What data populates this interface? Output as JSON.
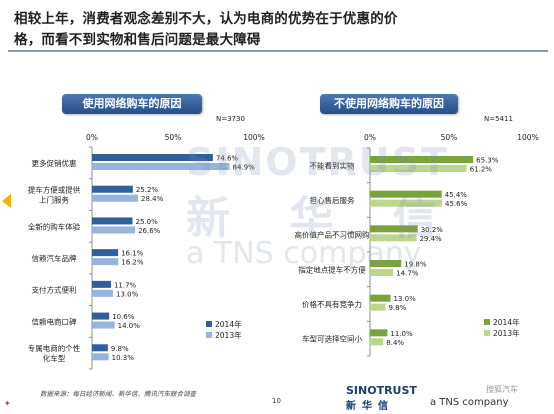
{
  "slide": {
    "title_line1": "相较上年，消费者观念差别不大，认为电商的优势在于优惠的价",
    "title_line2": "格，而看不到实物和售后问题是最大障碍",
    "page_number": "10",
    "source": "数据来源：每日经济新闻、新华信、腾讯汽车联合调查"
  },
  "watermark": {
    "brand": "SINOTRUST",
    "cn": "新 华 信",
    "tns": "a TNS company"
  },
  "logo": {
    "brand": "SINOTRUST",
    "cn": "新华信",
    "sub": "a TNS company",
    "corner": "搜狐汽车"
  },
  "colors": {
    "series_2014": "#2e5f9e",
    "series_2013": "#98b4dc",
    "series_2014_right": "#7aa339",
    "series_2013_right": "#bcd68c",
    "header": "#2f5b96"
  },
  "chart_data": [
    {
      "type": "bar",
      "orientation": "horizontal",
      "title": "使用网络购车的原因",
      "sample_size": "N=3730",
      "axis_ticks": [
        "0%",
        "50%",
        "100%"
      ],
      "xlim": [
        0,
        100
      ],
      "categories": [
        "更多促销优惠",
        "提车方便或提供上门服务",
        "全新的购车体验",
        "信赖汽车品牌",
        "支付方式便利",
        "信赖电商口碑",
        "专属电商的个性化车型"
      ],
      "category_display": [
        [
          "更多促销优惠"
        ],
        [
          "提车方便或提供",
          "上门服务"
        ],
        [
          "全新的购车体验"
        ],
        [
          "信赖汽车品牌"
        ],
        [
          "支付方式便利"
        ],
        [
          "信赖电商口碑"
        ],
        [
          "专属电商的个性",
          "化车型"
        ]
      ],
      "series": [
        {
          "name": "2014年",
          "values": [
            74.6,
            25.2,
            25.0,
            16.1,
            11.7,
            10.6,
            9.8
          ],
          "labels": [
            "74.6%",
            "25.2%",
            "25.0%",
            "16.1%",
            "11.7%",
            "10.6%",
            "9.8%"
          ]
        },
        {
          "name": "2013年",
          "values": [
            84.9,
            28.4,
            26.6,
            16.2,
            13.0,
            14.0,
            10.3
          ],
          "labels": [
            "84.9%",
            "28.4%",
            "26.6%",
            "16.2%",
            "13.0%",
            "14.0%",
            "10.3%"
          ]
        }
      ],
      "legend": [
        "2014年",
        "2013年"
      ],
      "legend_position": "bottom-right"
    },
    {
      "type": "bar",
      "orientation": "horizontal",
      "title": "不使用网络购车的原因",
      "sample_size": "N=5411",
      "axis_ticks": [
        "0%",
        "50%",
        "100%"
      ],
      "xlim": [
        0,
        100
      ],
      "categories": [
        "不能看到实物",
        "担心售后服务",
        "高价值产品不习惯网购",
        "指定地点提车不方便",
        "价格不具有竞争力",
        "车型可选择空间小"
      ],
      "category_display": [
        [
          "不能看到实物"
        ],
        [
          "担心售后服务"
        ],
        [
          "高价值产品不习惯网购"
        ],
        [
          "指定地点提车不方便"
        ],
        [
          "价格不具有竞争力"
        ],
        [
          "车型可选择空间小"
        ]
      ],
      "series": [
        {
          "name": "2014年",
          "values": [
            65.3,
            45.4,
            30.2,
            19.8,
            13.0,
            11.0
          ],
          "labels": [
            "65.3%",
            "45.4%",
            "30.2%",
            "19.8%",
            "13.0%",
            "11.0%"
          ]
        },
        {
          "name": "2013年",
          "values": [
            61.2,
            45.6,
            29.4,
            14.7,
            9.8,
            8.4
          ],
          "labels": [
            "61.2%",
            "45.6%",
            "29.4%",
            "14.7%",
            "9.8%",
            "8.4%"
          ]
        }
      ],
      "legend": [
        "2014年",
        "2013年"
      ],
      "legend_position": "bottom-right"
    }
  ]
}
